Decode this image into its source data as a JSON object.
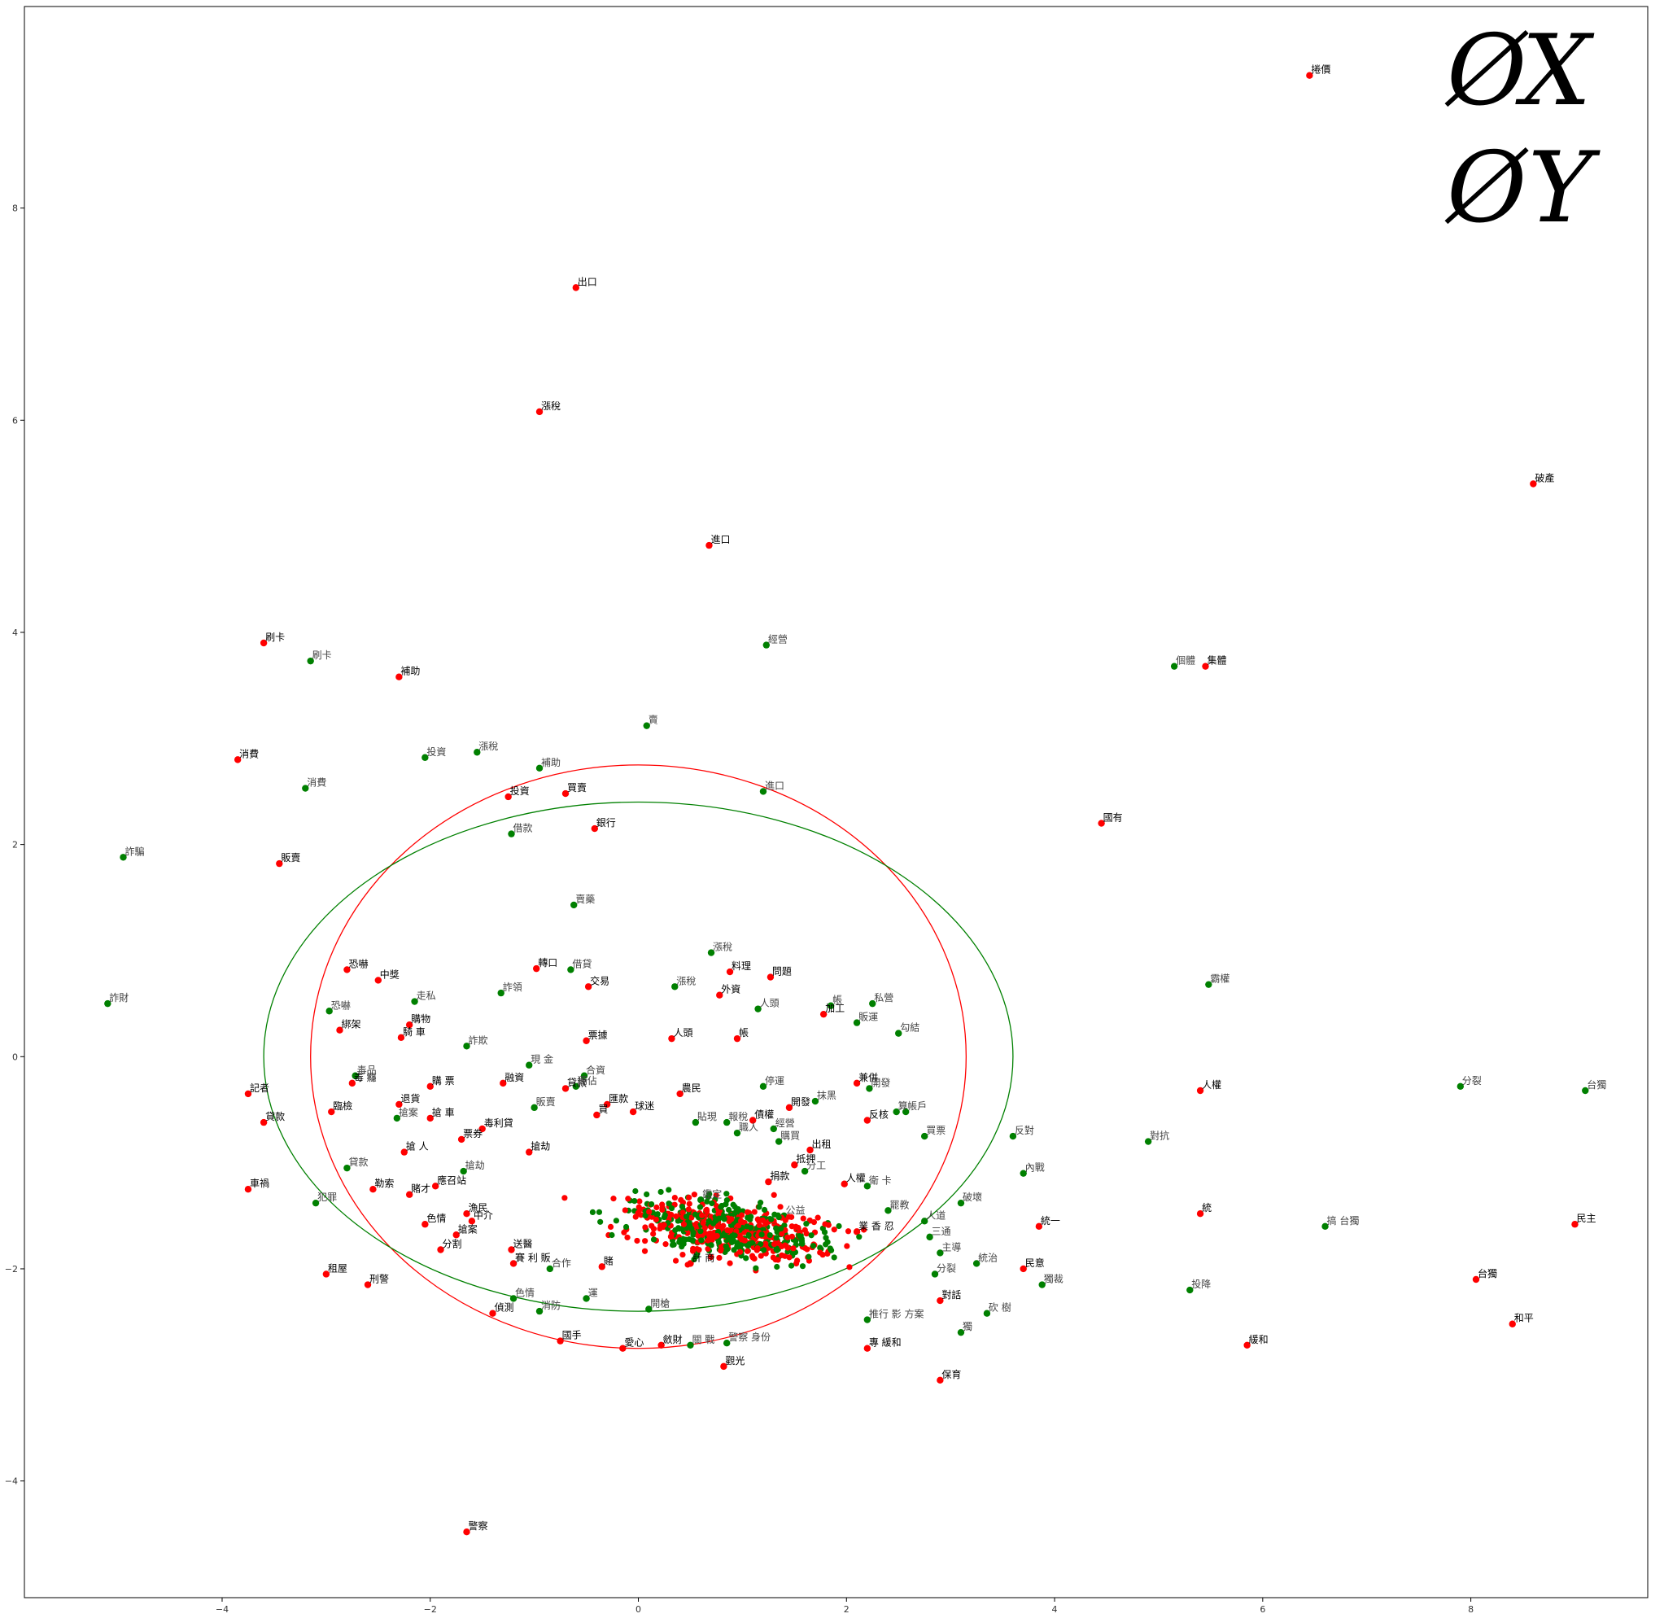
{
  "chart_data": {
    "type": "scatter",
    "title": "",
    "xlabel": "",
    "ylabel": "",
    "xlim": [
      -5.9,
      9.7
    ],
    "ylim": [
      -5.1,
      9.9
    ],
    "x_ticks": [
      -4,
      -2,
      0,
      2,
      4,
      6,
      8
    ],
    "y_ticks": [
      -4,
      -2,
      0,
      2,
      4,
      6,
      8
    ],
    "legend": {
      "position": "top-right",
      "entries": [
        "ØX",
        "ØY"
      ]
    },
    "legend_glyphs": {
      "empty_set": "Ø",
      "x": "X",
      "y": "Y"
    },
    "ellipses": [
      {
        "series": "red",
        "center": [
          0.0,
          0.0
        ],
        "rx": 3.15,
        "ry": 2.75,
        "color": "#ff0000"
      },
      {
        "series": "green",
        "center": [
          0.0,
          0.0
        ],
        "rx": 3.6,
        "ry": 2.4,
        "color": "#008000"
      }
    ],
    "series": [
      {
        "color": "#ff0000",
        "points": [
          {
            "x": 6.45,
            "y": 9.25,
            "label": "捲價"
          },
          {
            "x": -0.6,
            "y": 7.25,
            "label": "出口"
          },
          {
            "x": -0.95,
            "y": 6.08,
            "label": "漲稅"
          },
          {
            "x": 0.68,
            "y": 4.82,
            "label": "進口"
          },
          {
            "x": 8.6,
            "y": 5.4,
            "label": "破產"
          },
          {
            "x": 5.45,
            "y": 3.68,
            "label": "集體"
          },
          {
            "x": 4.45,
            "y": 2.2,
            "label": "國有"
          },
          {
            "x": -3.6,
            "y": 3.9,
            "label": "刷卡"
          },
          {
            "x": -2.3,
            "y": 3.58,
            "label": "補助"
          },
          {
            "x": -3.85,
            "y": 2.8,
            "label": "消費"
          },
          {
            "x": -1.25,
            "y": 2.45,
            "label": "投資"
          },
          {
            "x": -0.7,
            "y": 2.48,
            "label": "買賣"
          },
          {
            "x": -0.42,
            "y": 2.15,
            "label": "銀行"
          },
          {
            "x": -3.45,
            "y": 1.82,
            "label": "販賣"
          },
          {
            "x": -2.8,
            "y": 0.82,
            "label": "恐嚇"
          },
          {
            "x": -2.5,
            "y": 0.72,
            "label": "中獎"
          },
          {
            "x": -0.98,
            "y": 0.83,
            "label": "轉口"
          },
          {
            "x": -0.48,
            "y": 0.66,
            "label": "交易"
          },
          {
            "x": 0.88,
            "y": 0.8,
            "label": "料理"
          },
          {
            "x": 1.27,
            "y": 0.75,
            "label": "問題"
          },
          {
            "x": 0.78,
            "y": 0.58,
            "label": "外資"
          },
          {
            "x": 1.78,
            "y": 0.4,
            "label": "加工"
          },
          {
            "x": 0.32,
            "y": 0.17,
            "label": "人頭"
          },
          {
            "x": 0.95,
            "y": 0.17,
            "label": "帳"
          },
          {
            "x": -0.5,
            "y": 0.15,
            "label": "票據"
          },
          {
            "x": -2.2,
            "y": 0.3,
            "label": "購物"
          },
          {
            "x": -2.28,
            "y": 0.18,
            "label": "騎 車"
          },
          {
            "x": -2.87,
            "y": 0.25,
            "label": "綁架"
          },
          {
            "x": -1.3,
            "y": -0.25,
            "label": "融資"
          },
          {
            "x": -2.75,
            "y": -0.25,
            "label": "毒 癮"
          },
          {
            "x": -2.0,
            "y": -0.28,
            "label": "購 票"
          },
          {
            "x": -0.7,
            "y": -0.3,
            "label": "貸款"
          },
          {
            "x": -0.3,
            "y": -0.45,
            "label": "匯款"
          },
          {
            "x": 0.4,
            "y": -0.35,
            "label": "農民"
          },
          {
            "x": 2.1,
            "y": -0.25,
            "label": "兼併"
          },
          {
            "x": -3.75,
            "y": -0.35,
            "label": "記者"
          },
          {
            "x": -2.3,
            "y": -0.45,
            "label": "退貨"
          },
          {
            "x": -2.95,
            "y": -0.52,
            "label": "臨檢"
          },
          {
            "x": -2.0,
            "y": -0.58,
            "label": "搶 車"
          },
          {
            "x": -0.4,
            "y": -0.55,
            "label": "買"
          },
          {
            "x": -0.05,
            "y": -0.52,
            "label": "球迷"
          },
          {
            "x": 1.1,
            "y": -0.6,
            "label": "債權"
          },
          {
            "x": 1.45,
            "y": -0.48,
            "label": "開發"
          },
          {
            "x": 2.2,
            "y": -0.6,
            "label": "反核"
          },
          {
            "x": -3.6,
            "y": -0.62,
            "label": "貸款"
          },
          {
            "x": -1.5,
            "y": -0.68,
            "label": "毒利貸"
          },
          {
            "x": -1.7,
            "y": -0.78,
            "label": "票券"
          },
          {
            "x": -2.25,
            "y": -0.9,
            "label": "搶 人"
          },
          {
            "x": -1.05,
            "y": -0.9,
            "label": "搶劫"
          },
          {
            "x": 1.65,
            "y": -0.88,
            "label": "出租"
          },
          {
            "x": 1.5,
            "y": -1.02,
            "label": "抵押"
          },
          {
            "x": -3.75,
            "y": -1.25,
            "label": "車禍"
          },
          {
            "x": -2.55,
            "y": -1.25,
            "label": "勒索"
          },
          {
            "x": -2.2,
            "y": -1.3,
            "label": "賭才"
          },
          {
            "x": -1.95,
            "y": -1.22,
            "label": "應召站"
          },
          {
            "x": -1.65,
            "y": -1.48,
            "label": "漁民"
          },
          {
            "x": -1.6,
            "y": -1.55,
            "label": "中介"
          },
          {
            "x": 1.25,
            "y": -1.18,
            "label": "捐款"
          },
          {
            "x": 1.98,
            "y": -1.2,
            "label": "人權"
          },
          {
            "x": -2.05,
            "y": -1.58,
            "label": "色情"
          },
          {
            "x": -1.75,
            "y": -1.68,
            "label": "搶案"
          },
          {
            "x": -1.9,
            "y": -1.82,
            "label": "分割"
          },
          {
            "x": -1.22,
            "y": -1.82,
            "label": "送醫"
          },
          {
            "x": -1.2,
            "y": -1.95,
            "label": "賽 利 販"
          },
          {
            "x": -3.0,
            "y": -2.05,
            "label": "租屋"
          },
          {
            "x": -2.6,
            "y": -2.15,
            "label": "刑警"
          },
          {
            "x": -0.35,
            "y": -1.98,
            "label": "賭"
          },
          {
            "x": 0.5,
            "y": -1.95,
            "label": "計 商"
          },
          {
            "x": -1.4,
            "y": -2.42,
            "label": "偵測"
          },
          {
            "x": -0.75,
            "y": -2.68,
            "label": "國手"
          },
          {
            "x": -0.15,
            "y": -2.75,
            "label": "愛心"
          },
          {
            "x": 0.22,
            "y": -2.72,
            "label": "斂財"
          },
          {
            "x": 0.82,
            "y": -2.92,
            "label": "觀光"
          },
          {
            "x": 2.1,
            "y": -1.65,
            "label": "業 香 忍"
          },
          {
            "x": 2.2,
            "y": -2.75,
            "label": "專 緩和"
          },
          {
            "x": 2.9,
            "y": -3.05,
            "label": "保育"
          },
          {
            "x": 2.9,
            "y": -2.3,
            "label": "對話"
          },
          {
            "x": 3.85,
            "y": -1.6,
            "label": "統一"
          },
          {
            "x": 3.7,
            "y": -2.0,
            "label": "民意"
          },
          {
            "x": 5.4,
            "y": -1.48,
            "label": "統"
          },
          {
            "x": 5.4,
            "y": -0.32,
            "label": "人權"
          },
          {
            "x": 5.85,
            "y": -2.72,
            "label": "緩和"
          },
          {
            "x": 8.05,
            "y": -2.1,
            "label": "台獨"
          },
          {
            "x": 8.4,
            "y": -2.52,
            "label": "和平"
          },
          {
            "x": 9.0,
            "y": -1.58,
            "label": "民主"
          },
          {
            "x": -1.65,
            "y": -4.48,
            "label": "警察"
          }
        ]
      },
      {
        "color": "#008000",
        "points": [
          {
            "x": 5.15,
            "y": 3.68,
            "label": "個體"
          },
          {
            "x": 1.23,
            "y": 3.88,
            "label": "經營"
          },
          {
            "x": -3.15,
            "y": 3.73,
            "label": "刷卡"
          },
          {
            "x": 0.08,
            "y": 3.12,
            "label": "賣"
          },
          {
            "x": -2.05,
            "y": 2.82,
            "label": "投資"
          },
          {
            "x": -1.55,
            "y": 2.87,
            "label": "漲稅"
          },
          {
            "x": -0.95,
            "y": 2.72,
            "label": "補助"
          },
          {
            "x": -3.2,
            "y": 2.53,
            "label": "消費"
          },
          {
            "x": 1.2,
            "y": 2.5,
            "label": "進口"
          },
          {
            "x": -1.22,
            "y": 2.1,
            "label": "借款"
          },
          {
            "x": -4.95,
            "y": 1.88,
            "label": "詐騙"
          },
          {
            "x": -0.62,
            "y": 1.43,
            "label": "賣藥"
          },
          {
            "x": 0.7,
            "y": 0.98,
            "label": "漲稅"
          },
          {
            "x": -0.65,
            "y": 0.82,
            "label": "借貸"
          },
          {
            "x": 0.35,
            "y": 0.66,
            "label": "漲稅"
          },
          {
            "x": -1.32,
            "y": 0.6,
            "label": "詐領"
          },
          {
            "x": -2.15,
            "y": 0.52,
            "label": "走私"
          },
          {
            "x": 1.15,
            "y": 0.45,
            "label": "人頭"
          },
          {
            "x": 1.85,
            "y": 0.48,
            "label": "帳"
          },
          {
            "x": 2.25,
            "y": 0.5,
            "label": "私營"
          },
          {
            "x": 2.1,
            "y": 0.32,
            "label": "販運"
          },
          {
            "x": 2.5,
            "y": 0.22,
            "label": "勾結"
          },
          {
            "x": -2.97,
            "y": 0.43,
            "label": "恐嚇"
          },
          {
            "x": -5.1,
            "y": 0.5,
            "label": "詐財"
          },
          {
            "x": -1.65,
            "y": 0.1,
            "label": "詐欺"
          },
          {
            "x": -1.05,
            "y": -0.08,
            "label": "現 金"
          },
          {
            "x": -0.6,
            "y": -0.28,
            "label": "獨佔"
          },
          {
            "x": -0.52,
            "y": -0.18,
            "label": "合資"
          },
          {
            "x": -2.72,
            "y": -0.18,
            "label": "毒品"
          },
          {
            "x": -2.32,
            "y": -0.58,
            "label": "搶案"
          },
          {
            "x": -1.0,
            "y": -0.48,
            "label": "販賣"
          },
          {
            "x": 1.2,
            "y": -0.28,
            "label": "停運"
          },
          {
            "x": 1.7,
            "y": -0.42,
            "label": "抹黑"
          },
          {
            "x": 2.22,
            "y": -0.3,
            "label": "開發"
          },
          {
            "x": 2.48,
            "y": -0.52,
            "label": "算"
          },
          {
            "x": 2.57,
            "y": -0.52,
            "label": "帳戶"
          },
          {
            "x": 0.55,
            "y": -0.62,
            "label": "貼現"
          },
          {
            "x": 0.85,
            "y": -0.62,
            "label": "報稅"
          },
          {
            "x": 0.95,
            "y": -0.72,
            "label": "職人"
          },
          {
            "x": 1.3,
            "y": -0.68,
            "label": "經營"
          },
          {
            "x": 2.75,
            "y": -0.75,
            "label": "買票"
          },
          {
            "x": 1.35,
            "y": -0.8,
            "label": "購買"
          },
          {
            "x": 3.6,
            "y": -0.75,
            "label": "反對"
          },
          {
            "x": 4.9,
            "y": -0.8,
            "label": "對抗"
          },
          {
            "x": 5.48,
            "y": 0.68,
            "label": "霸權"
          },
          {
            "x": -2.8,
            "y": -1.05,
            "label": "貸款"
          },
          {
            "x": -1.68,
            "y": -1.08,
            "label": "搶劫"
          },
          {
            "x": 1.6,
            "y": -1.08,
            "label": "分工"
          },
          {
            "x": 2.2,
            "y": -1.22,
            "label": "衛 卡"
          },
          {
            "x": 3.7,
            "y": -1.1,
            "label": "內戰"
          },
          {
            "x": 3.1,
            "y": -1.38,
            "label": "破壞"
          },
          {
            "x": -3.1,
            "y": -1.38,
            "label": "犯罪"
          },
          {
            "x": 2.4,
            "y": -1.45,
            "label": "罷教"
          },
          {
            "x": 2.75,
            "y": -1.55,
            "label": "人道"
          },
          {
            "x": 2.8,
            "y": -1.7,
            "label": "三通"
          },
          {
            "x": 2.9,
            "y": -1.85,
            "label": "主導"
          },
          {
            "x": 3.25,
            "y": -1.95,
            "label": "統治"
          },
          {
            "x": 2.85,
            "y": -2.05,
            "label": "分裂"
          },
          {
            "x": 3.88,
            "y": -2.15,
            "label": "獨裁"
          },
          {
            "x": 3.35,
            "y": -2.42,
            "label": "砍 樹"
          },
          {
            "x": 3.1,
            "y": -2.6,
            "label": "獨"
          },
          {
            "x": 2.2,
            "y": -2.48,
            "label": "推行 影 方案"
          },
          {
            "x": 5.3,
            "y": -2.2,
            "label": "投降"
          },
          {
            "x": 6.6,
            "y": -1.6,
            "label": "搞 台獨"
          },
          {
            "x": 7.9,
            "y": -0.28,
            "label": "分裂"
          },
          {
            "x": 9.1,
            "y": -0.32,
            "label": "台獨"
          },
          {
            "x": -1.2,
            "y": -2.28,
            "label": "色情"
          },
          {
            "x": -0.95,
            "y": -2.4,
            "label": "消防"
          },
          {
            "x": -0.5,
            "y": -2.28,
            "label": "運"
          },
          {
            "x": 0.1,
            "y": -2.38,
            "label": "開槍"
          },
          {
            "x": 0.5,
            "y": -2.72,
            "label": "關 戰"
          },
          {
            "x": 0.85,
            "y": -2.7,
            "label": "警察 身份"
          },
          {
            "x": -0.85,
            "y": -2.0,
            "label": "合作"
          },
          {
            "x": 0.6,
            "y": -1.35,
            "label": "鑑定"
          },
          {
            "x": 1.4,
            "y": -1.5,
            "label": "公益"
          }
        ]
      }
    ]
  }
}
